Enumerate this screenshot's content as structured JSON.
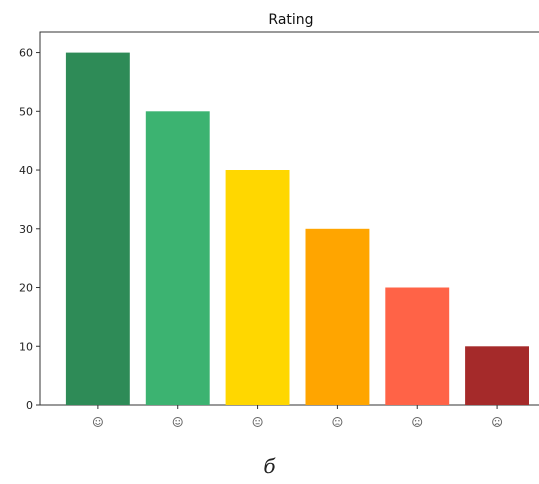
{
  "chart_data": {
    "type": "bar",
    "title": "Rating",
    "xlabel": "",
    "ylabel": "",
    "categories": [
      "very-happy",
      "happy",
      "neutral",
      "slightly-sad",
      "sad",
      "very-sad"
    ],
    "values": [
      60,
      50,
      40,
      30,
      20,
      10
    ],
    "colors": [
      "#2e8b57",
      "#3cb371",
      "#ffd700",
      "#ffa500",
      "#ff6347",
      "#a52a2a"
    ],
    "category_icons": [
      "very-happy-face-icon",
      "happy-face-icon",
      "neutral-face-icon",
      "slightly-sad-face-icon",
      "sad-face-icon",
      "very-sad-face-icon"
    ],
    "ylim": [
      0,
      63.5
    ],
    "yticks": [
      0,
      10,
      20,
      30,
      40,
      50,
      60
    ],
    "grid": false,
    "legend": "none"
  },
  "caption": "б"
}
